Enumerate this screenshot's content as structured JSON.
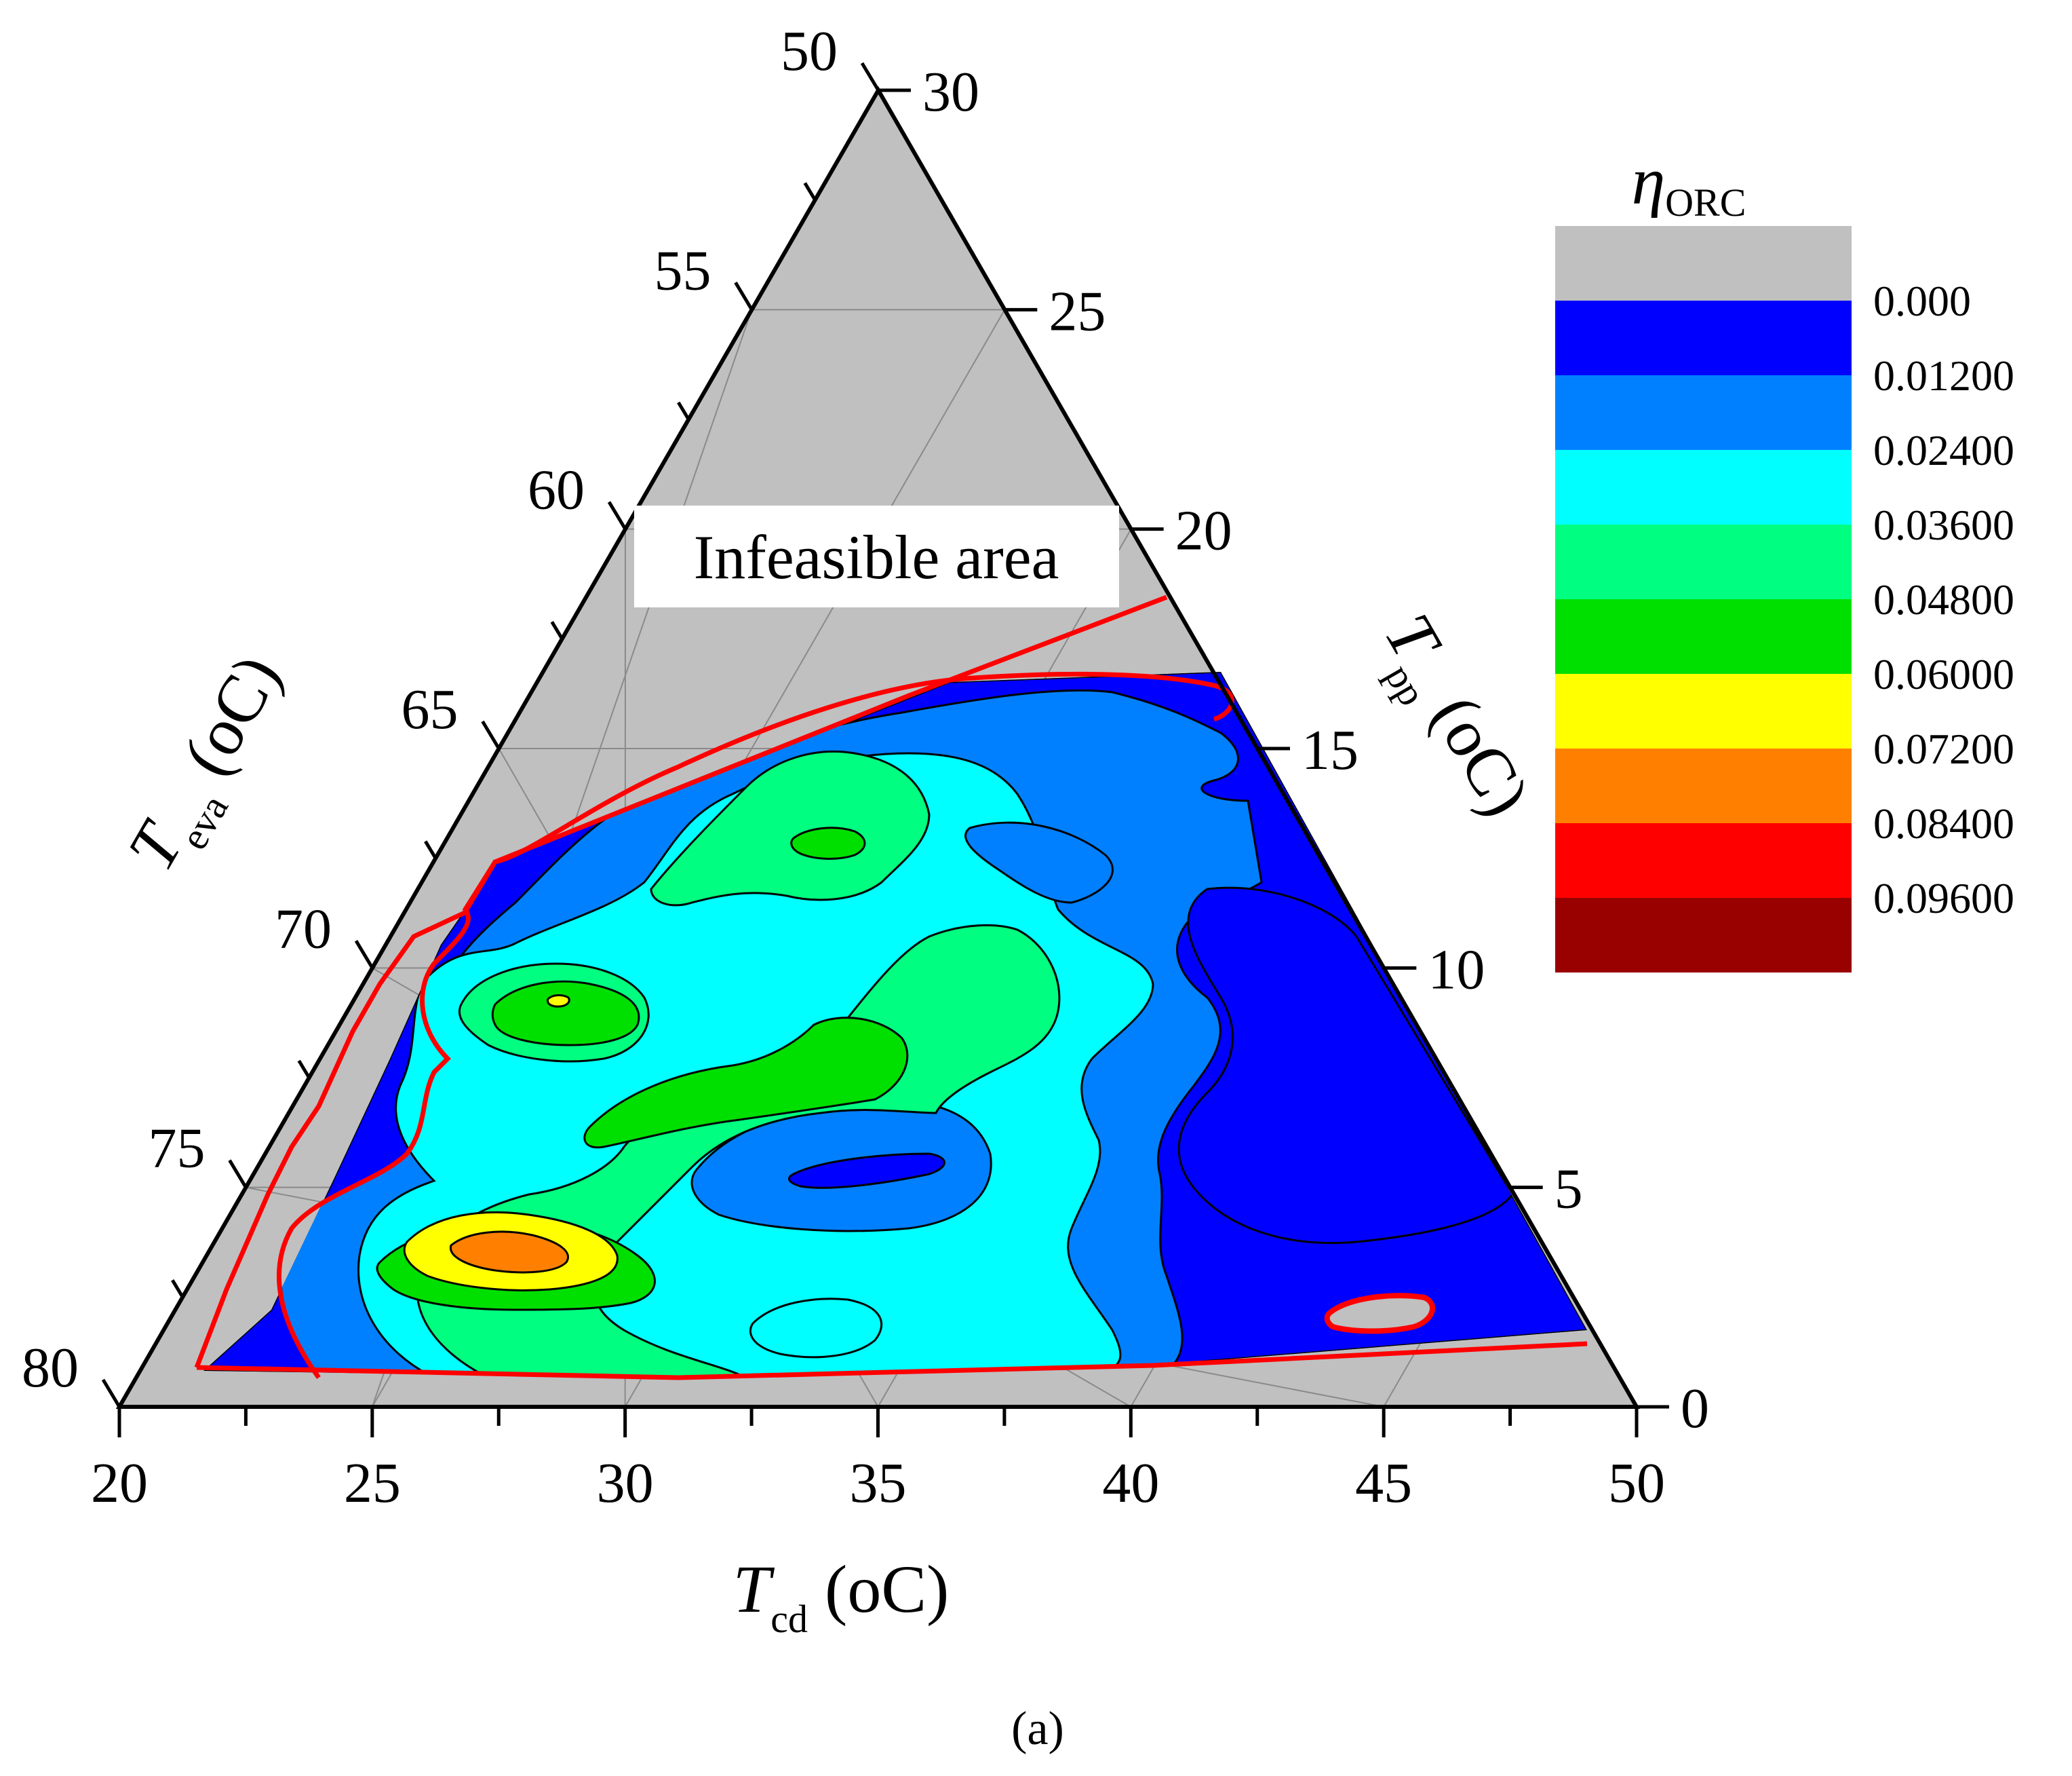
{
  "chart_data": {
    "type": "ternary-contour",
    "caption": "(a)",
    "annotation": "Infeasible area",
    "axes": {
      "bottom": {
        "symbol": "T",
        "subscript": "cd",
        "unit": " (oC)",
        "range": [
          20,
          50
        ],
        "ticks": [
          "20",
          "25",
          "30",
          "35",
          "40",
          "45",
          "50"
        ]
      },
      "left": {
        "symbol": "T",
        "subscript": "eva",
        "unit": " (oC)",
        "range": [
          50,
          80
        ],
        "ticks": [
          "50",
          "55",
          "60",
          "65",
          "70",
          "75",
          "80"
        ]
      },
      "right": {
        "symbol": "T",
        "subscript": "pp",
        "unit": " (oC)",
        "range": [
          0,
          30
        ],
        "ticks": [
          "30",
          "25",
          "20",
          "15",
          "10",
          "5",
          "0"
        ]
      }
    },
    "colorbar": {
      "title_symbol": "η",
      "title_subscript": "ORC",
      "levels": [
        "0.000",
        "0.01200",
        "0.02400",
        "0.03600",
        "0.04800",
        "0.06000",
        "0.07200",
        "0.08400",
        "0.09600"
      ],
      "colors": [
        "#c0c0c0",
        "#0000ff",
        "#0080ff",
        "#00ffff",
        "#00ff80",
        "#00e000",
        "#ffff00",
        "#ff8000",
        "#ff0000",
        "#990000"
      ]
    },
    "feasible_boundary_color": "#ff0000",
    "grid": true
  }
}
